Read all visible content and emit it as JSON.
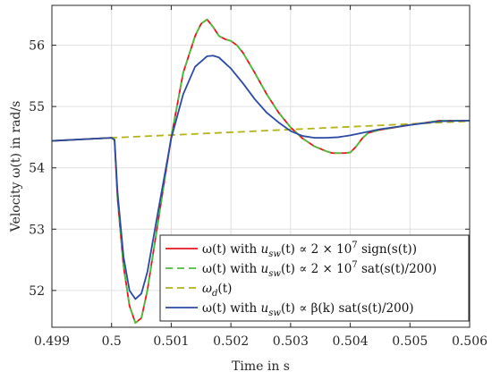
{
  "chart_data": {
    "type": "line",
    "xlabel": "Time in s",
    "ylabel": "Velocity ω(t) in rad/s",
    "xlim": [
      0.499,
      0.506
    ],
    "ylim": [
      51.4,
      56.65
    ],
    "x_ticks": [
      0.499,
      0.5,
      0.501,
      0.502,
      0.503,
      0.504,
      0.505,
      0.506
    ],
    "x_tick_labels": [
      "0.499",
      "0.5",
      "0.501",
      "0.502",
      "0.503",
      "0.504",
      "0.505",
      "0.506"
    ],
    "y_ticks": [
      52,
      53,
      54,
      55,
      56
    ],
    "y_tick_labels": [
      "52",
      "53",
      "54",
      "55",
      "56"
    ],
    "grid": true,
    "legend_position": "bottom-right",
    "colors": {
      "sign": "#e8141b",
      "sat": "#4cbf3a",
      "desired": "#b3b317",
      "beta": "#2a4aa4"
    },
    "series": [
      {
        "name": "ω(t) with u_sw(t) ∝ 2 × 10^7 sign(s(t))",
        "color_key": "sign",
        "dash": "solid",
        "x": [
          0.499,
          0.5,
          0.50005,
          0.5001,
          0.5002,
          0.5003,
          0.5004,
          0.5005,
          0.5006,
          0.5008,
          0.501,
          0.5012,
          0.5014,
          0.5015,
          0.5016,
          0.5017,
          0.5018,
          0.5019,
          0.502,
          0.5021,
          0.5022,
          0.5024,
          0.5026,
          0.5028,
          0.503,
          0.5032,
          0.5034,
          0.5036,
          0.5037,
          0.5038,
          0.5039,
          0.504,
          0.5041,
          0.5042,
          0.5043,
          0.5045,
          0.505,
          0.5055,
          0.506
        ],
        "y": [
          54.44,
          54.49,
          54.45,
          53.5,
          52.4,
          51.75,
          51.47,
          51.55,
          52.0,
          53.25,
          54.5,
          55.55,
          56.15,
          56.35,
          56.42,
          56.3,
          56.15,
          56.1,
          56.07,
          56.0,
          55.88,
          55.55,
          55.2,
          54.9,
          54.66,
          54.48,
          54.35,
          54.27,
          54.24,
          54.24,
          54.24,
          54.25,
          54.35,
          54.48,
          54.57,
          54.62,
          54.7,
          54.77,
          54.77
        ]
      },
      {
        "name": "ω(t) with u_sw(t) ∝ 2 × 10^7 sat(s(t)/200)",
        "color_key": "sat",
        "dash": "dashed",
        "x": [
          0.499,
          0.5,
          0.50005,
          0.5001,
          0.5002,
          0.5003,
          0.5004,
          0.5005,
          0.5006,
          0.5008,
          0.501,
          0.5012,
          0.5014,
          0.5015,
          0.5016,
          0.5017,
          0.5018,
          0.5019,
          0.502,
          0.5021,
          0.5022,
          0.5024,
          0.5026,
          0.5028,
          0.503,
          0.5032,
          0.5034,
          0.5036,
          0.5037,
          0.5038,
          0.5039,
          0.504,
          0.5041,
          0.5042,
          0.5043,
          0.5045,
          0.505,
          0.5055,
          0.506
        ],
        "y": [
          54.44,
          54.49,
          54.45,
          53.5,
          52.4,
          51.75,
          51.47,
          51.55,
          52.0,
          53.25,
          54.5,
          55.55,
          56.15,
          56.35,
          56.42,
          56.3,
          56.15,
          56.1,
          56.07,
          56.0,
          55.88,
          55.55,
          55.2,
          54.9,
          54.66,
          54.48,
          54.35,
          54.27,
          54.24,
          54.24,
          54.24,
          54.25,
          54.35,
          54.48,
          54.57,
          54.62,
          54.7,
          54.77,
          54.77
        ]
      },
      {
        "name": "ω_d(t)",
        "color_key": "desired",
        "dash": "dashed",
        "x": [
          0.499,
          0.5,
          0.506
        ],
        "y": [
          54.44,
          54.49,
          54.76
        ]
      },
      {
        "name": "ω(t) with u_sw(t) ∝ β(k) sat(s(t)/200)",
        "color_key": "beta",
        "dash": "solid",
        "x": [
          0.499,
          0.5,
          0.50005,
          0.5001,
          0.5002,
          0.5003,
          0.5004,
          0.5005,
          0.5006,
          0.5008,
          0.501,
          0.5012,
          0.5014,
          0.5016,
          0.5017,
          0.5018,
          0.502,
          0.5022,
          0.5024,
          0.5026,
          0.5028,
          0.503,
          0.5032,
          0.5034,
          0.5036,
          0.5038,
          0.504,
          0.5042,
          0.5045,
          0.505,
          0.5055,
          0.506
        ],
        "y": [
          54.44,
          54.49,
          54.46,
          53.6,
          52.55,
          52.0,
          51.86,
          51.95,
          52.3,
          53.4,
          54.48,
          55.2,
          55.65,
          55.82,
          55.83,
          55.8,
          55.62,
          55.38,
          55.12,
          54.9,
          54.74,
          54.6,
          54.52,
          54.49,
          54.49,
          54.5,
          54.53,
          54.57,
          54.63,
          54.7,
          54.76,
          54.77
        ]
      }
    ],
    "legend": [
      {
        "series_index": 0,
        "color_key": "sign",
        "dash": "solid",
        "prefix": "ω(t) with ",
        "var": "u",
        "sub": "sw",
        "mid": "(t) ∝ 2 × 10",
        "sup": "7",
        "suffix": " sign(s(t))"
      },
      {
        "series_index": 1,
        "color_key": "sat",
        "dash": "dashed",
        "prefix": "ω(t) with ",
        "var": "u",
        "sub": "sw",
        "mid": "(t) ∝ 2 × 10",
        "sup": "7",
        "suffix": " sat(s(t)/200)"
      },
      {
        "series_index": 2,
        "color_key": "desired",
        "dash": "dashed",
        "prefix": "",
        "var": "ω",
        "sub": "d",
        "mid": "(t)",
        "sup": "",
        "suffix": ""
      },
      {
        "series_index": 3,
        "color_key": "beta",
        "dash": "solid",
        "prefix": "ω(t) with ",
        "var": "u",
        "sub": "sw",
        "mid": "(t) ∝ β(k) sat(s(t)/200)",
        "sup": "",
        "suffix": ""
      }
    ]
  }
}
